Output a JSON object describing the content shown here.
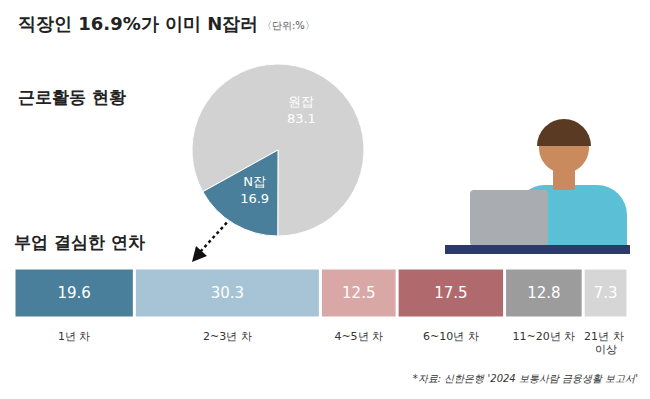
{
  "title": "직장인 16.9%가 이미 N잡러",
  "unit": "〈단위:%〉",
  "source": "*자료: 신한은행 '2024 보통사람 금융생활 보고서'",
  "chart_data": [
    {
      "type": "pie",
      "title": "근로활동 현황",
      "categories": [
        "원잡",
        "N잡"
      ],
      "values": [
        83.1,
        16.9
      ],
      "colors": [
        "#d2d2d2",
        "#4a7f9c"
      ],
      "data_labels": true
    },
    {
      "type": "bar",
      "title": "부업 결심한 연차",
      "orientation": "horizontal",
      "stacked": true,
      "categories": [
        null
      ],
      "series": [
        {
          "name": "1년 차",
          "color": "#4a7f9c",
          "values": [
            19.6
          ]
        },
        {
          "name": "2~3년 차",
          "color": "#a7c3d6",
          "values": [
            30.3
          ]
        },
        {
          "name": "4~5년 차",
          "color": "#d9a8a6",
          "values": [
            12.5
          ]
        },
        {
          "name": "6~10년 차",
          "color": "#b06a6e",
          "values": [
            17.5
          ]
        },
        {
          "name": "11~20년 차",
          "color": "#9c9c9c",
          "values": [
            12.8
          ]
        },
        {
          "name": "21년 차 이상",
          "color": "#d6d6d6",
          "values": [
            7.3
          ]
        }
      ],
      "xlim": [
        0,
        100
      ],
      "tick_labels": false,
      "data_labels": true
    }
  ]
}
